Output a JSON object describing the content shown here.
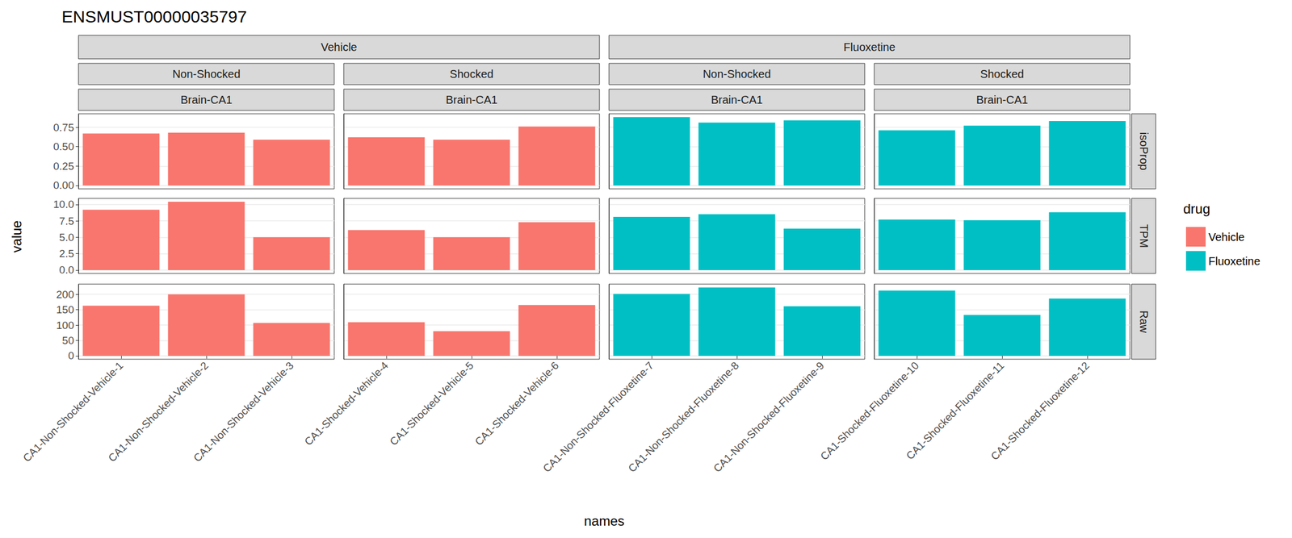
{
  "chart_data": {
    "type": "bar",
    "title": "ENSMUST00000035797",
    "x_label": "names",
    "y_label": "value",
    "legend_title": "drug",
    "legend": "right",
    "grid": true,
    "series": [
      {
        "name": "Vehicle",
        "color": "#F8766D"
      },
      {
        "name": "Fluoxetine",
        "color": "#00BFC4"
      }
    ],
    "columns": [
      {
        "drug": "Vehicle",
        "shock": "Non-Shocked",
        "tissue": "Brain-CA1",
        "categories": [
          "CA1-Non-Shocked-Vehicle-1",
          "CA1-Non-Shocked-Vehicle-2",
          "CA1-Non-Shocked-Vehicle-3"
        ]
      },
      {
        "drug": "Vehicle",
        "shock": "Shocked",
        "tissue": "Brain-CA1",
        "categories": [
          "CA1-Shocked-Vehicle-4",
          "CA1-Shocked-Vehicle-5",
          "CA1-Shocked-Vehicle-6"
        ]
      },
      {
        "drug": "Fluoxetine",
        "shock": "Non-Shocked",
        "tissue": "Brain-CA1",
        "categories": [
          "CA1-Non-Shocked-Fluoxetine-7",
          "CA1-Non-Shocked-Fluoxetine-8",
          "CA1-Non-Shocked-Fluoxetine-9"
        ]
      },
      {
        "drug": "Fluoxetine",
        "shock": "Shocked",
        "tissue": "Brain-CA1",
        "categories": [
          "CA1-Shocked-Fluoxetine-10",
          "CA1-Shocked-Fluoxetine-11",
          "CA1-Shocked-Fluoxetine-12"
        ]
      }
    ],
    "rows": [
      {
        "metric": "isoProp",
        "ylim": [
          -0.044,
          0.924
        ],
        "yticks": [
          {
            "value": 0,
            "label": "0.00"
          },
          {
            "value": 0.25,
            "label": "0.25"
          },
          {
            "value": 0.5,
            "label": "0.50"
          },
          {
            "value": 0.75,
            "label": "0.75"
          }
        ],
        "values": [
          [
            0.67,
            0.68,
            0.59
          ],
          [
            0.62,
            0.59,
            0.76
          ],
          [
            0.88,
            0.81,
            0.84
          ],
          [
            0.71,
            0.77,
            0.83
          ]
        ]
      },
      {
        "metric": "TPM",
        "ylim": [
          -0.52,
          10.92
        ],
        "yticks": [
          {
            "value": 0,
            "label": "0.0"
          },
          {
            "value": 2.5,
            "label": "2.5"
          },
          {
            "value": 5,
            "label": "5.0"
          },
          {
            "value": 7.5,
            "label": "7.5"
          },
          {
            "value": 10,
            "label": "10.0"
          }
        ],
        "values": [
          [
            9.2,
            10.4,
            5.0
          ],
          [
            6.1,
            5.0,
            7.3
          ],
          [
            8.1,
            8.5,
            6.3
          ],
          [
            7.7,
            7.6,
            8.8
          ]
        ]
      },
      {
        "metric": "Raw",
        "ylim": [
          -11.1,
          233.1
        ],
        "yticks": [
          0,
          50,
          100,
          150,
          200
        ],
        "values": [
          [
            163,
            200,
            107
          ],
          [
            109,
            80,
            165
          ],
          [
            201,
            222,
            161
          ],
          [
            212,
            133,
            186
          ]
        ]
      }
    ]
  }
}
